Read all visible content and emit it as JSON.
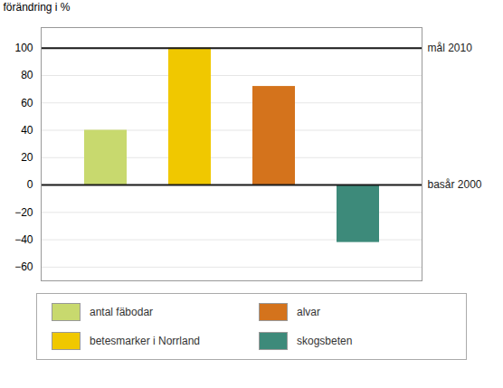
{
  "chart_data": {
    "type": "bar",
    "ylabel": "förändring i %",
    "categories": [
      "antal fäbodar",
      "betesmarker i Norrland",
      "alvar",
      "skogsbeten"
    ],
    "values": [
      40,
      100,
      72,
      -42
    ],
    "colors": [
      "#c8d96e",
      "#f0c800",
      "#d4731c",
      "#3d8a7a"
    ],
    "ylim": [
      -70,
      115
    ],
    "yticks": [
      -60,
      -40,
      -20,
      0,
      20,
      40,
      60,
      80,
      100
    ],
    "grid": true,
    "tick_labels": "y",
    "legend": "bottom",
    "annotations": [
      {
        "label": "mål 2010",
        "y": 100
      },
      {
        "label": "basår 2000",
        "y": 0
      }
    ]
  }
}
